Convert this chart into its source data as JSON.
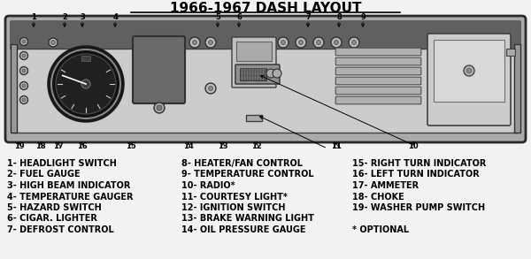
{
  "title": "1966-1967 DASH LAYOUT",
  "bg_color": "#f2f2f2",
  "legend_col1": [
    "1- HEADLIGHT SWITCH",
    "2- FUEL GAUGE",
    "3- HIGH BEAM INDICATOR",
    "4- TEMPERATURE GAUGER",
    "5- HAZARD SWITCH",
    "6- CIGAR. LIGHTER",
    "7- DEFROST CONTROL"
  ],
  "legend_col2": [
    "8- HEATER/FAN CONTROL",
    "9- TEMPERATURE CONTROL",
    "10- RADIO*",
    "11- COURTESY LIGHT*",
    "12- IGNITION SWITCH",
    "13- BRAKE WARNING LIGHT",
    "14- OIL PRESSURE GAUGE"
  ],
  "legend_col3": [
    "15- RIGHT TURN INDICATOR",
    "16- LEFT TURN INDICATOR",
    "17- AMMETER",
    "18- CHOKE",
    "19- WASHER PUMP SWITCH",
    "",
    "* OPTIONAL"
  ],
  "top_nums": {
    "1": 38,
    "2": 73,
    "3": 93,
    "4": 130,
    "5": 246,
    "6": 270,
    "7": 348,
    "8": 383,
    "9": 410
  },
  "bottom_nums_left": {
    "19": 22,
    "18": 46,
    "17": 66,
    "16": 93,
    "15": 148
  },
  "bottom_nums_right": {
    "14": 213,
    "13": 252,
    "12": 290,
    "11": 380,
    "10": 467
  }
}
